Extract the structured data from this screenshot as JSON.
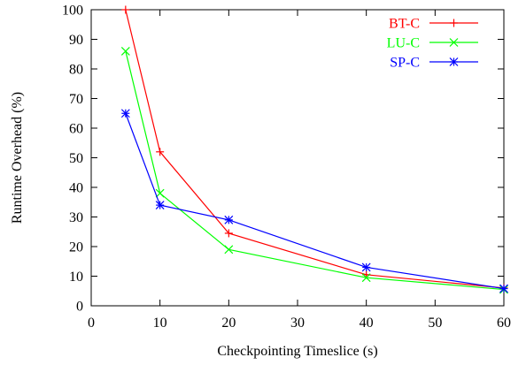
{
  "chart_data": {
    "type": "line",
    "title": "",
    "xlabel": "Checkpointing Timeslice (s)",
    "ylabel": "Runtime Overhead (%)",
    "xlim": [
      0,
      60
    ],
    "ylim": [
      0,
      100
    ],
    "xticks": [
      0,
      10,
      20,
      30,
      40,
      50,
      60
    ],
    "yticks": [
      0,
      10,
      20,
      30,
      40,
      50,
      60,
      70,
      80,
      90,
      100
    ],
    "grid": false,
    "legend_position": "top-right",
    "series": [
      {
        "name": "BT-C",
        "color": "#ff0000",
        "marker": "plus",
        "x": [
          5,
          10,
          20,
          40,
          60
        ],
        "y": [
          100,
          52,
          24.5,
          10.5,
          6
        ]
      },
      {
        "name": "LU-C",
        "color": "#00ff00",
        "marker": "cross",
        "x": [
          5,
          10,
          20,
          40,
          60
        ],
        "y": [
          86,
          38,
          19,
          9.5,
          5.5
        ]
      },
      {
        "name": "SP-C",
        "color": "#0000ff",
        "marker": "star",
        "x": [
          5,
          10,
          20,
          40,
          60
        ],
        "y": [
          65,
          34,
          29,
          13,
          5.8
        ]
      }
    ]
  }
}
